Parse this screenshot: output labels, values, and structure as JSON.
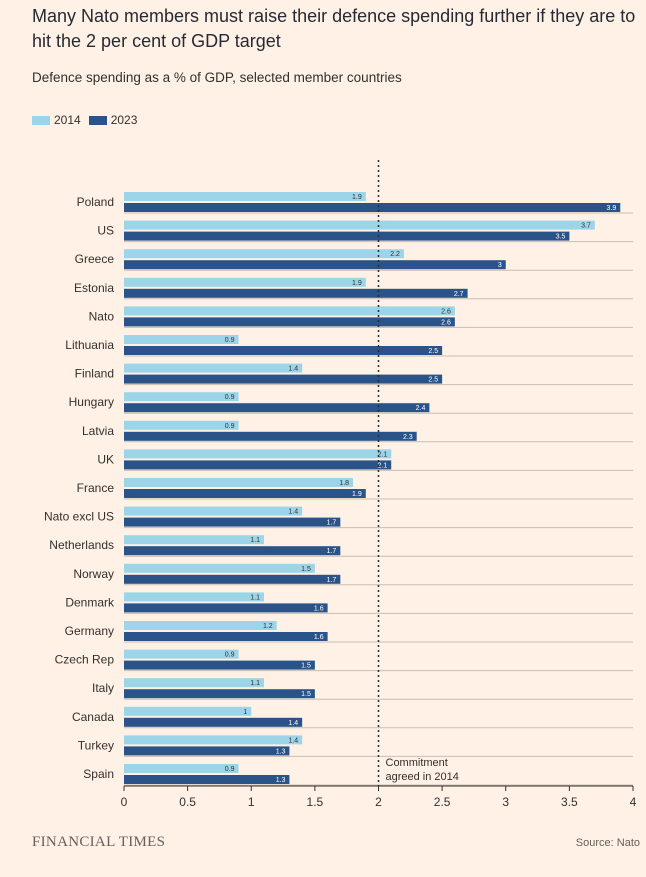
{
  "header": {
    "title": "Many Nato members must raise their defence spending further if they are to hit the 2 per cent of GDP target",
    "subtitle": "Defence spending as a % of GDP, selected member countries"
  },
  "colors": {
    "series_2014": "#9dd5e8",
    "series_2023": "#2a5489",
    "background": "#fff1e5"
  },
  "chart_data": {
    "type": "bar",
    "orientation": "horizontal",
    "categories": [
      "Poland",
      "US",
      "Greece",
      "Estonia",
      "Nato",
      "Lithuania",
      "Finland",
      "Hungary",
      "Latvia",
      "UK",
      "France",
      "Nato excl US",
      "Netherlands",
      "Norway",
      "Denmark",
      "Germany",
      "Czech Rep",
      "Italy",
      "Canada",
      "Turkey",
      "Spain"
    ],
    "series": [
      {
        "name": "2014",
        "values": [
          1.9,
          3.7,
          2.2,
          1.9,
          2.6,
          0.9,
          1.4,
          0.9,
          0.9,
          2.1,
          1.8,
          1.4,
          1.1,
          1.5,
          1.1,
          1.2,
          0.9,
          1.1,
          1,
          1.4,
          0.9
        ],
        "labels": [
          "1.9",
          "3.7",
          "2.2",
          "1.9",
          "2.6",
          "0.9",
          "1.4",
          "0.9",
          "0.9",
          "2.1",
          "1.8",
          "1.4",
          "1.1",
          "1.5",
          "1.1",
          "1.2",
          "0.9",
          "1.1",
          "1",
          "1.4",
          "0.9"
        ]
      },
      {
        "name": "2023",
        "values": [
          3.9,
          3.5,
          3,
          2.7,
          2.6,
          2.5,
          2.5,
          2.4,
          2.3,
          2.1,
          1.9,
          1.7,
          1.7,
          1.7,
          1.6,
          1.6,
          1.5,
          1.5,
          1.4,
          1.3,
          1.3
        ],
        "labels": [
          "3.9",
          "3.5",
          "3",
          "2.7",
          "2.6",
          "2.5",
          "2.5",
          "2.4",
          "2.3",
          "2.1",
          "1.9",
          "1.7",
          "1.7",
          "1.7",
          "1.6",
          "1.6",
          "1.5",
          "1.5",
          "1.4",
          "1.3",
          "1.3"
        ]
      }
    ],
    "xlim": [
      0,
      4
    ],
    "xticks": [
      "0",
      "0.5",
      "1",
      "1.5",
      "2",
      "2.5",
      "3",
      "3.5",
      "4"
    ],
    "reference_line": {
      "value": 2,
      "style": "dotted",
      "annotation": [
        "Commitment",
        "agreed in 2014"
      ]
    },
    "legend_position": "top-left"
  },
  "footer": {
    "logo": "FINANCIAL TIMES",
    "source": "Source: Nato"
  }
}
